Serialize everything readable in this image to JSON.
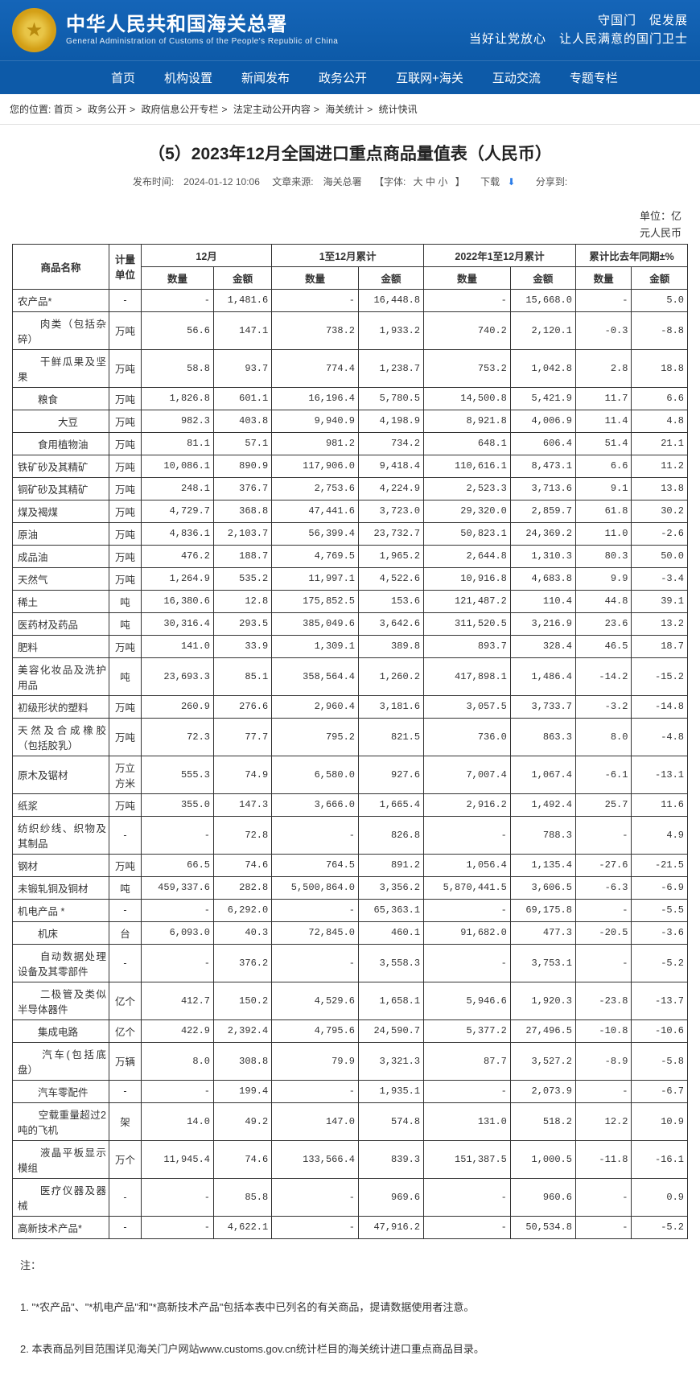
{
  "header": {
    "title_cn": "中华人民共和国海关总署",
    "title_en": "General Administration of Customs of the People's Republic of China",
    "slogan_line1": "守国门　促发展",
    "slogan_line2": "当好让党放心　让人民满意的国门卫士"
  },
  "nav": [
    "首页",
    "机构设置",
    "新闻发布",
    "政务公开",
    "互联网+海关",
    "互动交流",
    "专题专栏"
  ],
  "breadcrumb": {
    "label": "您的位置:",
    "items": [
      "首页",
      "政务公开",
      "政府信息公开专栏",
      "法定主动公开内容",
      "海关统计",
      "统计快讯"
    ]
  },
  "article": {
    "title": "（5）2023年12月全国进口重点商品量值表（人民币）",
    "pub_label": "发布时间:",
    "pub_time": "2024-01-12 10:06",
    "source_label": "文章来源:",
    "source": "海关总署",
    "font_label": "【字体:",
    "font_large": "大",
    "font_mid": "中",
    "font_small": "小",
    "font_close": "】",
    "download": "下载",
    "share": "分享到:"
  },
  "unit": {
    "line1": "单位：亿",
    "line2": "元人民币"
  },
  "tableHead": {
    "name": "商品名称",
    "unit": "计量单位",
    "m12": "12月",
    "ytd": "1至12月累计",
    "prev_ytd": "2022年1至12月累计",
    "yoy": "累计比去年同期±%",
    "qty": "数量",
    "val": "金额"
  },
  "rows": [
    {
      "name": "农产品*",
      "unit": "-",
      "c": [
        "-",
        "1,481.6",
        "-",
        "16,448.8",
        "-",
        "15,668.0",
        "-",
        "5.0"
      ]
    },
    {
      "name": "　　肉类（包括杂碎）",
      "unit": "万吨",
      "c": [
        "56.6",
        "147.1",
        "738.2",
        "1,933.2",
        "740.2",
        "2,120.1",
        "-0.3",
        "-8.8"
      ]
    },
    {
      "name": "　　干鲜瓜果及坚果",
      "unit": "万吨",
      "c": [
        "58.8",
        "93.7",
        "774.4",
        "1,238.7",
        "753.2",
        "1,042.8",
        "2.8",
        "18.8"
      ]
    },
    {
      "name": "　　粮食",
      "unit": "万吨",
      "c": [
        "1,826.8",
        "601.1",
        "16,196.4",
        "5,780.5",
        "14,500.8",
        "5,421.9",
        "11.7",
        "6.6"
      ]
    },
    {
      "name": "　　　　大豆",
      "unit": "万吨",
      "c": [
        "982.3",
        "403.8",
        "9,940.9",
        "4,198.9",
        "8,921.8",
        "4,006.9",
        "11.4",
        "4.8"
      ]
    },
    {
      "name": "　　食用植物油",
      "unit": "万吨",
      "c": [
        "81.1",
        "57.1",
        "981.2",
        "734.2",
        "648.1",
        "606.4",
        "51.4",
        "21.1"
      ]
    },
    {
      "name": "铁矿砂及其精矿",
      "unit": "万吨",
      "c": [
        "10,086.1",
        "890.9",
        "117,906.0",
        "9,418.4",
        "110,616.1",
        "8,473.1",
        "6.6",
        "11.2"
      ]
    },
    {
      "name": "铜矿砂及其精矿",
      "unit": "万吨",
      "c": [
        "248.1",
        "376.7",
        "2,753.6",
        "4,224.9",
        "2,523.3",
        "3,713.6",
        "9.1",
        "13.8"
      ]
    },
    {
      "name": "煤及褐煤",
      "unit": "万吨",
      "c": [
        "4,729.7",
        "368.8",
        "47,441.6",
        "3,723.0",
        "29,320.0",
        "2,859.7",
        "61.8",
        "30.2"
      ]
    },
    {
      "name": "原油",
      "unit": "万吨",
      "c": [
        "4,836.1",
        "2,103.7",
        "56,399.4",
        "23,732.7",
        "50,823.1",
        "24,369.2",
        "11.0",
        "-2.6"
      ]
    },
    {
      "name": "成品油",
      "unit": "万吨",
      "c": [
        "476.2",
        "188.7",
        "4,769.5",
        "1,965.2",
        "2,644.8",
        "1,310.3",
        "80.3",
        "50.0"
      ]
    },
    {
      "name": "天然气",
      "unit": "万吨",
      "c": [
        "1,264.9",
        "535.2",
        "11,997.1",
        "4,522.6",
        "10,916.8",
        "4,683.8",
        "9.9",
        "-3.4"
      ]
    },
    {
      "name": "稀土",
      "unit": "吨",
      "c": [
        "16,380.6",
        "12.8",
        "175,852.5",
        "153.6",
        "121,487.2",
        "110.4",
        "44.8",
        "39.1"
      ]
    },
    {
      "name": "医药材及药品",
      "unit": "吨",
      "c": [
        "30,316.4",
        "293.5",
        "385,049.6",
        "3,642.6",
        "311,520.5",
        "3,216.9",
        "23.6",
        "13.2"
      ]
    },
    {
      "name": "肥料",
      "unit": "万吨",
      "c": [
        "141.0",
        "33.9",
        "1,309.1",
        "389.8",
        "893.7",
        "328.4",
        "46.5",
        "18.7"
      ]
    },
    {
      "name": "美容化妆品及洗护用品",
      "unit": "吨",
      "c": [
        "23,693.3",
        "85.1",
        "358,564.4",
        "1,260.2",
        "417,898.1",
        "1,486.4",
        "-14.2",
        "-15.2"
      ]
    },
    {
      "name": "初级形状的塑料",
      "unit": "万吨",
      "c": [
        "260.9",
        "276.6",
        "2,960.4",
        "3,181.6",
        "3,057.5",
        "3,733.7",
        "-3.2",
        "-14.8"
      ]
    },
    {
      "name": "天然及合成橡胶（包括胶乳）",
      "unit": "万吨",
      "c": [
        "72.3",
        "77.7",
        "795.2",
        "821.5",
        "736.0",
        "863.3",
        "8.0",
        "-4.8"
      ]
    },
    {
      "name": "原木及锯材",
      "unit": "万立方米",
      "c": [
        "555.3",
        "74.9",
        "6,580.0",
        "927.6",
        "7,007.4",
        "1,067.4",
        "-6.1",
        "-13.1"
      ]
    },
    {
      "name": "纸浆",
      "unit": "万吨",
      "c": [
        "355.0",
        "147.3",
        "3,666.0",
        "1,665.4",
        "2,916.2",
        "1,492.4",
        "25.7",
        "11.6"
      ]
    },
    {
      "name": "纺织纱线、织物及其制品",
      "unit": "-",
      "c": [
        "-",
        "72.8",
        "-",
        "826.8",
        "-",
        "788.3",
        "-",
        "4.9"
      ]
    },
    {
      "name": "钢材",
      "unit": "万吨",
      "c": [
        "66.5",
        "74.6",
        "764.5",
        "891.2",
        "1,056.4",
        "1,135.4",
        "-27.6",
        "-21.5"
      ]
    },
    {
      "name": "未锻轧铜及铜材",
      "unit": "吨",
      "c": [
        "459,337.6",
        "282.8",
        "5,500,864.0",
        "3,356.2",
        "5,870,441.5",
        "3,606.5",
        "-6.3",
        "-6.9"
      ]
    },
    {
      "name": "机电产品 *",
      "unit": "-",
      "c": [
        "-",
        "6,292.0",
        "-",
        "65,363.1",
        "-",
        "69,175.8",
        "-",
        "-5.5"
      ]
    },
    {
      "name": "　　机床",
      "unit": "台",
      "c": [
        "6,093.0",
        "40.3",
        "72,845.0",
        "460.1",
        "91,682.0",
        "477.3",
        "-20.5",
        "-3.6"
      ]
    },
    {
      "name": "　　自动数据处理设备及其零部件",
      "unit": "-",
      "c": [
        "-",
        "376.2",
        "-",
        "3,558.3",
        "-",
        "3,753.1",
        "-",
        "-5.2"
      ]
    },
    {
      "name": "　　二极管及类似半导体器件",
      "unit": "亿个",
      "c": [
        "412.7",
        "150.2",
        "4,529.6",
        "1,658.1",
        "5,946.6",
        "1,920.3",
        "-23.8",
        "-13.7"
      ]
    },
    {
      "name": "　　集成电路",
      "unit": "亿个",
      "c": [
        "422.9",
        "2,392.4",
        "4,795.6",
        "24,590.7",
        "5,377.2",
        "27,496.5",
        "-10.8",
        "-10.6"
      ]
    },
    {
      "name": "　　汽车(包括底盘）",
      "unit": "万辆",
      "c": [
        "8.0",
        "308.8",
        "79.9",
        "3,321.3",
        "87.7",
        "3,527.2",
        "-8.9",
        "-5.8"
      ]
    },
    {
      "name": "　　汽车零配件",
      "unit": "-",
      "c": [
        "-",
        "199.4",
        "-",
        "1,935.1",
        "-",
        "2,073.9",
        "-",
        "-6.7"
      ]
    },
    {
      "name": "　　空载重量超过2吨的飞机",
      "unit": "架",
      "c": [
        "14.0",
        "49.2",
        "147.0",
        "574.8",
        "131.0",
        "518.2",
        "12.2",
        "10.9"
      ]
    },
    {
      "name": "　　液晶平板显示模组",
      "unit": "万个",
      "c": [
        "11,945.4",
        "74.6",
        "133,566.4",
        "839.3",
        "151,387.5",
        "1,000.5",
        "-11.8",
        "-16.1"
      ]
    },
    {
      "name": "　　医疗仪器及器械",
      "unit": "-",
      "c": [
        "-",
        "85.8",
        "-",
        "969.6",
        "-",
        "960.6",
        "-",
        "0.9"
      ]
    },
    {
      "name": "高新技术产品*",
      "unit": "-",
      "c": [
        "-",
        "4,622.1",
        "-",
        "47,916.2",
        "-",
        "50,534.8",
        "-",
        "-5.2"
      ]
    }
  ],
  "notes": {
    "title": "注：",
    "n1": "1. \"*农产品\"、\"*机电产品\"和\"*高新技术产品\"包括本表中已列名的有关商品，提请数据使用者注意。",
    "n2": "2. 本表商品列目范围详见海关门户网站www.customs.gov.cn统计栏目的海关统计进口重点商品目录。"
  },
  "colors": {
    "header_bg": "#0d5aa8",
    "border": "#333333",
    "text": "#333333"
  }
}
